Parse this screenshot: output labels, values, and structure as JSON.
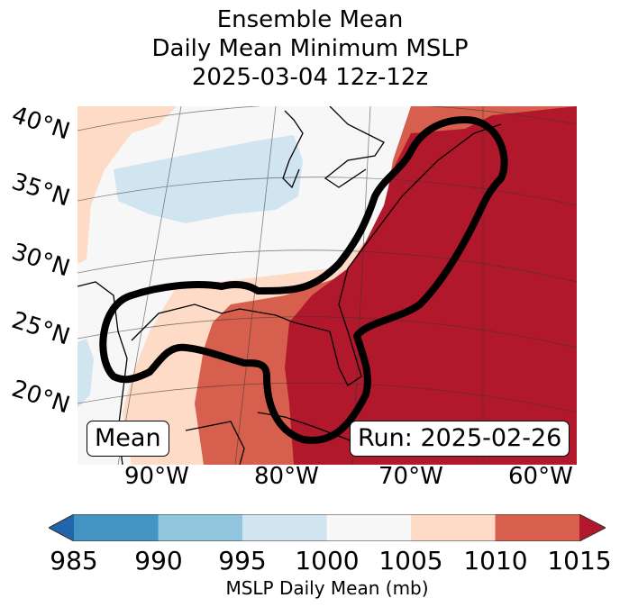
{
  "title": {
    "line1": "Ensemble Mean",
    "line2": "Daily Mean Minimum MSLP",
    "line3": "2025-03-04 12z-12z"
  },
  "map": {
    "extent_lon": [
      -97,
      -60
    ],
    "extent_lat": [
      17,
      42
    ],
    "lat_labels": [
      "40°N",
      "35°N",
      "30°N",
      "25°N",
      "20°N"
    ],
    "lon_labels": [
      "90°W",
      "80°W",
      "70°W",
      "60°W"
    ],
    "annotation_left": "Mean",
    "annotation_right": "Run: 2025-02-26",
    "regions": [
      {
        "name": "low-pressure-area-central-us",
        "level": "995-1000",
        "color": "#d1e5f0"
      },
      {
        "name": "gulf-area",
        "level": "1005-1010",
        "color": "#fddbc7"
      },
      {
        "name": "southeast-area",
        "level": "1010-1015",
        "color": "#d6604d"
      },
      {
        "name": "atlantic-area",
        "level": ">1015",
        "color": "#b2182b"
      }
    ],
    "contour_color": "#000000"
  },
  "colorbar": {
    "label": "MSLP Daily Mean (mb)",
    "ticks": [
      "985",
      "990",
      "995",
      "1000",
      "1005",
      "1010",
      "1015"
    ],
    "colors": [
      "#4393c3",
      "#92c5de",
      "#d1e5f0",
      "#f7f7f7",
      "#fddbc7",
      "#d6604d"
    ],
    "under_color": "#2166ac",
    "over_color": "#b2182b",
    "extend": "both"
  }
}
